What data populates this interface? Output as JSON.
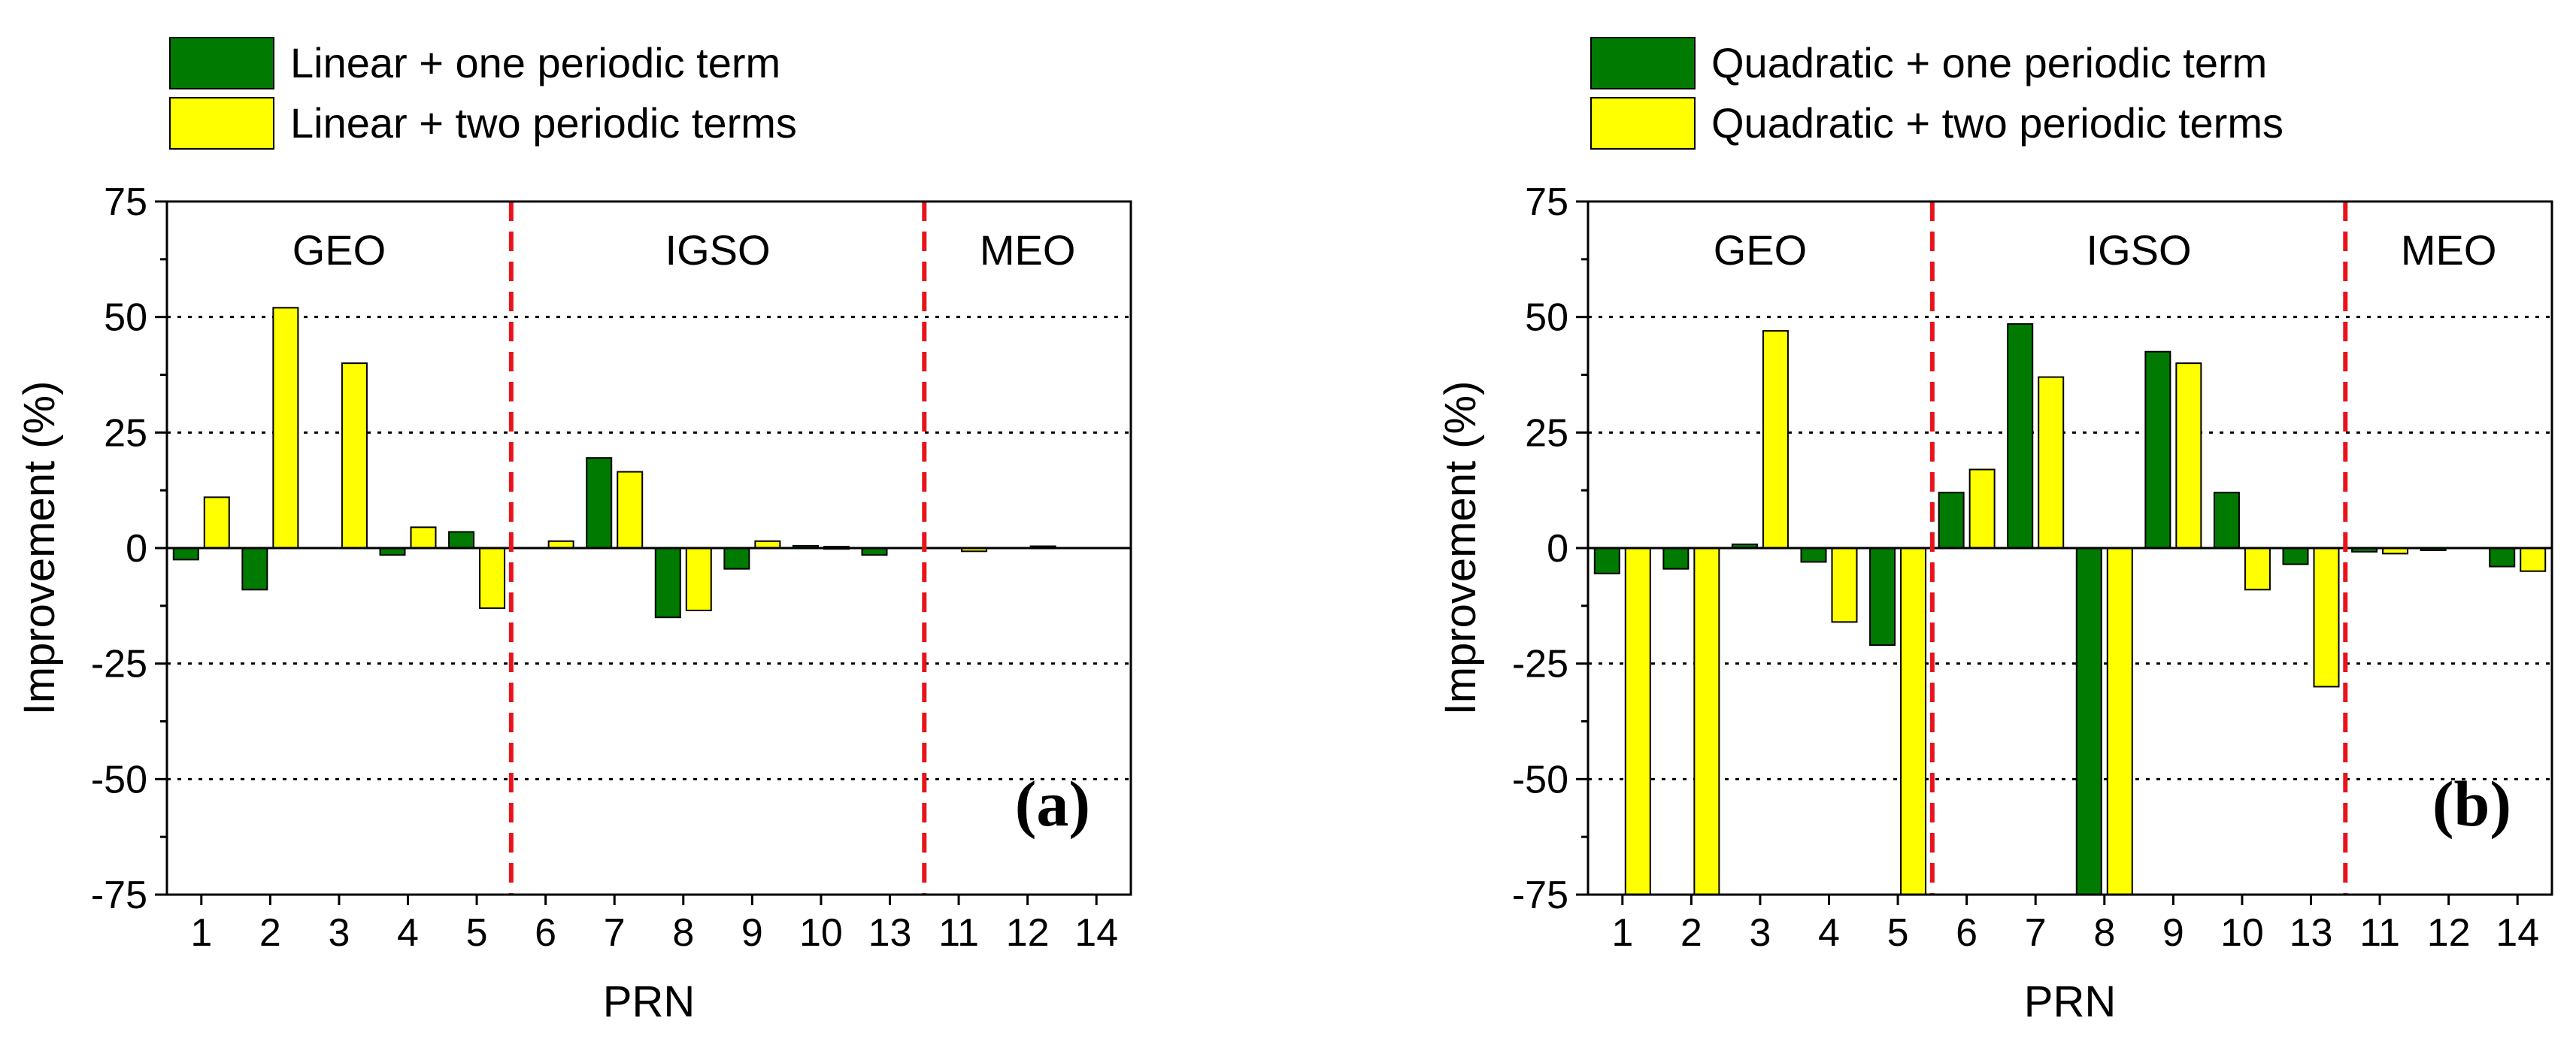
{
  "colors": {
    "series1": "#007a00",
    "series2": "#ffff00",
    "separator": "#e8141c",
    "grid": "#000000"
  },
  "chart_data": [
    {
      "type": "bar",
      "panel_label": "(a)",
      "xlabel": "PRN",
      "ylabel": "Improvement (%)",
      "ylim": [
        -75,
        75
      ],
      "yticks": [
        -75,
        -50,
        -25,
        0,
        25,
        50,
        75
      ],
      "grid": "horizontal dotted at ±25, ±50",
      "categories": [
        "1",
        "2",
        "3",
        "4",
        "5",
        "6",
        "7",
        "8",
        "9",
        "10",
        "13",
        "11",
        "12",
        "14"
      ],
      "regions": [
        {
          "label": "GEO",
          "start": 0,
          "end": 4
        },
        {
          "label": "IGSO",
          "start": 5,
          "end": 10
        },
        {
          "label": "MEO",
          "start": 11,
          "end": 13
        }
      ],
      "series": [
        {
          "name": "Linear + one periodic term",
          "values": [
            -2.5,
            -9,
            0,
            -1.5,
            3.5,
            0,
            19.5,
            -15,
            -4.5,
            0.5,
            -1.5,
            0,
            0,
            0
          ]
        },
        {
          "name": "Linear + two periodic terms",
          "values": [
            11,
            52,
            40,
            4.5,
            -13,
            1.5,
            16.5,
            -13.5,
            1.5,
            0.3,
            0,
            -0.7,
            0.4,
            0
          ]
        }
      ]
    },
    {
      "type": "bar",
      "panel_label": "(b)",
      "xlabel": "PRN",
      "ylabel": "Improvement (%)",
      "ylim": [
        -75,
        75
      ],
      "yticks": [
        -75,
        -50,
        -25,
        0,
        25,
        50,
        75
      ],
      "grid": "horizontal dotted at ±25, ±50",
      "categories": [
        "1",
        "2",
        "3",
        "4",
        "5",
        "6",
        "7",
        "8",
        "9",
        "10",
        "13",
        "11",
        "12",
        "14"
      ],
      "regions": [
        {
          "label": "GEO",
          "start": 0,
          "end": 4
        },
        {
          "label": "IGSO",
          "start": 5,
          "end": 10
        },
        {
          "label": "MEO",
          "start": 11,
          "end": 13
        }
      ],
      "series": [
        {
          "name": "Quadratic + one periodic term",
          "values": [
            -5.5,
            -4.5,
            0.8,
            -3,
            -21,
            12,
            48.5,
            -80,
            42.5,
            12,
            -3.5,
            -0.8,
            -0.3,
            -4
          ]
        },
        {
          "name": "Quadratic + two periodic terms",
          "values": [
            -80,
            -80,
            47,
            -16,
            -80,
            17,
            37,
            -80,
            40,
            -9,
            -30,
            -1.2,
            0,
            -5
          ]
        }
      ]
    }
  ]
}
